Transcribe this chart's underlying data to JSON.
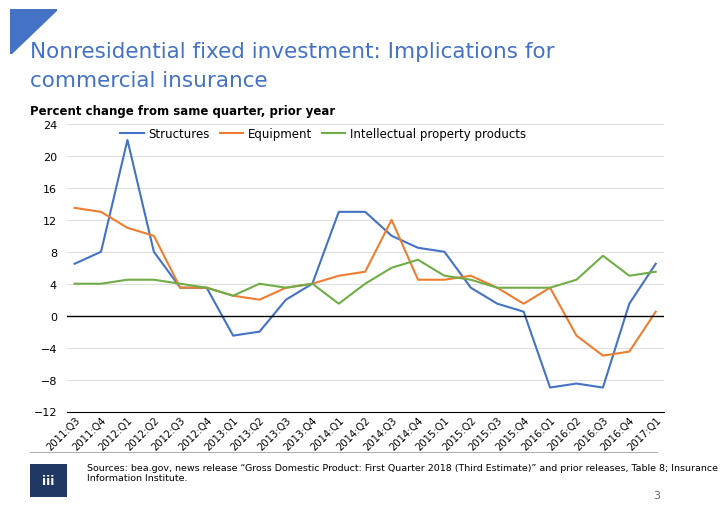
{
  "title_line1": "Nonresidential fixed investment: Implications for",
  "title_line2": "commercial insurance",
  "subtitle": "Percent change from same quarter, prior year",
  "source": "Sources: bea.gov, news release “Gross Domestic Product: First Quarter 2018 (Third Estimate)” and prior releases, Table 8; Insurance\nInformation Institute.",
  "page_number": "3",
  "quarters": [
    "2011:Q3",
    "2011:Q4",
    "2012:Q1",
    "2012:Q2",
    "2012:Q3",
    "2012:Q4",
    "2013:Q1",
    "2013:Q2",
    "2013:Q3",
    "2013:Q4",
    "2014:Q1",
    "2014:Q2",
    "2014:Q3",
    "2014:Q4",
    "2015:Q1",
    "2015:Q2",
    "2015:Q3",
    "2015:Q4",
    "2016:Q1",
    "2016:Q2",
    "2016:Q3",
    "2016:Q4",
    "2017:Q1"
  ],
  "structures": [
    6.5,
    8.0,
    22.0,
    8.0,
    3.5,
    3.5,
    -2.5,
    -2.0,
    2.0,
    4.0,
    13.0,
    13.0,
    10.0,
    8.5,
    8.0,
    3.5,
    1.5,
    0.5,
    -9.0,
    -8.5,
    -9.0,
    1.5,
    6.5
  ],
  "equipment": [
    13.5,
    13.0,
    11.0,
    10.0,
    3.5,
    3.5,
    2.5,
    2.0,
    3.5,
    4.0,
    5.0,
    5.5,
    12.0,
    4.5,
    4.5,
    5.0,
    3.5,
    1.5,
    3.5,
    -2.5,
    -5.0,
    -4.5,
    0.5
  ],
  "ipp": [
    4.0,
    4.0,
    4.5,
    4.5,
    4.0,
    3.5,
    2.5,
    4.0,
    3.5,
    4.0,
    1.5,
    4.0,
    6.0,
    7.0,
    5.0,
    4.5,
    3.5,
    3.5,
    3.5,
    4.5,
    7.5,
    5.0,
    5.5
  ],
  "structures_color": "#4472C4",
  "equipment_color": "#ED7D31",
  "ipp_color": "#70AD47",
  "ylim": [
    -12,
    24
  ],
  "yticks": [
    -12,
    -8,
    -4,
    0,
    4,
    8,
    12,
    16,
    20,
    24
  ],
  "title_color": "#4472C4",
  "background_color": "#FFFFFF",
  "grid_color": "#D9D9D9",
  "logo_color": "#1F3864"
}
